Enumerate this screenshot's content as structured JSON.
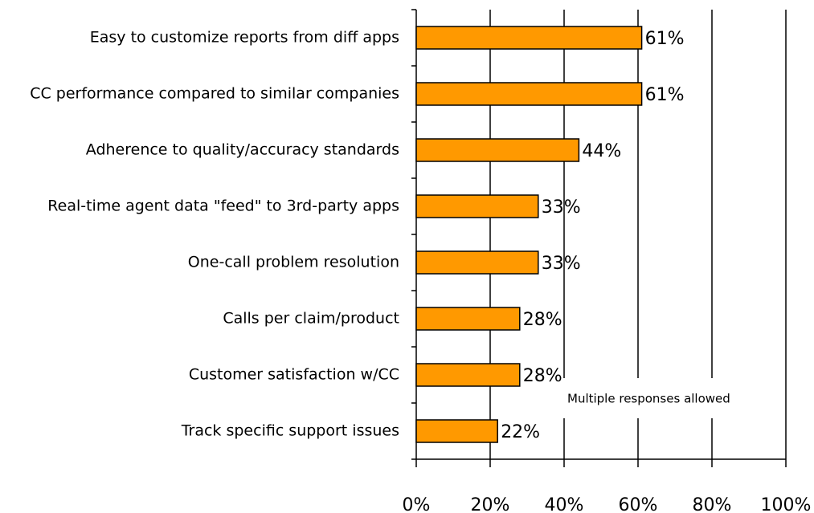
{
  "chart_data": {
    "type": "bar",
    "orientation": "horizontal",
    "categories": [
      "Easy to customize reports from diff apps",
      "CC performance compared to similar companies",
      "Adherence to quality/accuracy standards",
      "Real-time agent data \"feed\" to 3rd-party apps",
      "One-call problem resolution",
      "Calls per claim/product",
      "Customer satisfaction w/CC",
      "Track specific support issues"
    ],
    "values": [
      61,
      61,
      44,
      33,
      33,
      28,
      28,
      22
    ],
    "value_labels": [
      "61%",
      "61%",
      "44%",
      "33%",
      "33%",
      "28%",
      "28%",
      "22%"
    ],
    "color": "#ff9900",
    "xlim": [
      0,
      100
    ],
    "xticks": [
      {
        "value": 0,
        "label": "0%"
      },
      {
        "value": 20,
        "label": "20%"
      },
      {
        "value": 40,
        "label": "40%"
      },
      {
        "value": 60,
        "label": "60%"
      },
      {
        "value": 80,
        "label": "80%"
      },
      {
        "value": 100,
        "label": "100%"
      }
    ],
    "grid": true,
    "annotation": "Multiple responses allowed"
  }
}
